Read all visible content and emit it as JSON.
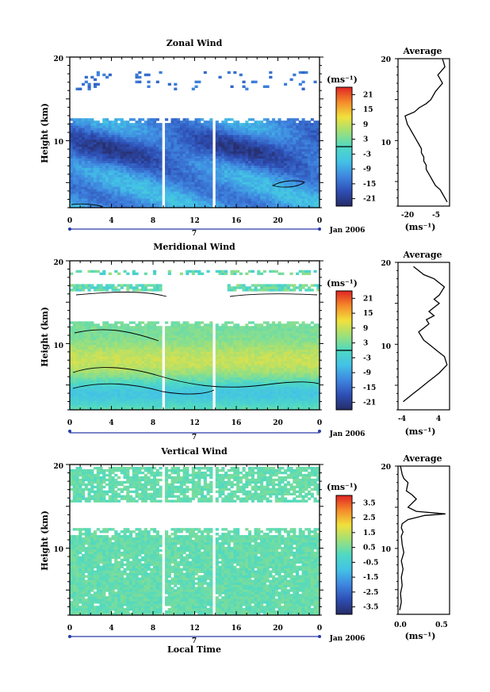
{
  "figure": {
    "xlabel": "Local Time",
    "date_label": "Jan 2006",
    "day_label": "7"
  },
  "chart_data": [
    {
      "type": "heatmap",
      "title": "Zonal Wind",
      "ylabel": "Height (km)",
      "unit_label": "(ms⁻¹)",
      "xlim": [
        0,
        24
      ],
      "ylim": [
        2,
        20
      ],
      "x_ticks": [
        "0",
        "4",
        "8",
        "12",
        "16",
        "20",
        "0"
      ],
      "y_ticks": [
        "10",
        "20"
      ],
      "colorbar_ticks": [
        "21",
        "15",
        "9",
        "3",
        "-3",
        "-9",
        "-15",
        "-21"
      ],
      "colorbar_range": [
        -24,
        24
      ],
      "field": "zonal"
    },
    {
      "type": "line",
      "title": "Average",
      "xlabel": "(ms⁻¹)",
      "x_ticks": [
        "-20",
        "-5"
      ],
      "xlim": [
        -24,
        -2
      ],
      "ylim": [
        2,
        20
      ],
      "y_ticks": [
        "10",
        "20"
      ],
      "x": [
        -3,
        -4,
        -5,
        -6,
        -8,
        -9,
        -10,
        -11,
        -12,
        -12,
        -13,
        -13,
        -14,
        -14,
        -15,
        -16,
        -17,
        -18,
        -19,
        -20,
        -21,
        -17,
        -15,
        -12,
        -10,
        -8,
        -5,
        -6,
        -7,
        -4,
        -5
      ],
      "y": [
        2.5,
        3.0,
        3.5,
        4.0,
        4.5,
        5.0,
        5.5,
        6.0,
        6.5,
        7.0,
        7.5,
        8.0,
        8.5,
        9.0,
        9.5,
        10.0,
        10.5,
        11.0,
        11.5,
        12.0,
        13.0,
        13.5,
        14.0,
        14.5,
        15.0,
        16.0,
        17.0,
        17.5,
        18.0,
        19.0,
        20.0
      ]
    },
    {
      "type": "heatmap",
      "title": "Meridional Wind",
      "ylabel": "Height (km)",
      "unit_label": "(ms⁻¹)",
      "xlim": [
        0,
        24
      ],
      "ylim": [
        2,
        20
      ],
      "x_ticks": [
        "0",
        "4",
        "8",
        "12",
        "16",
        "20",
        "0"
      ],
      "y_ticks": [
        "10",
        "20"
      ],
      "colorbar_ticks": [
        "21",
        "15",
        "9",
        "3",
        "-3",
        "-9",
        "-15",
        "-21"
      ],
      "colorbar_range": [
        -24,
        24
      ],
      "field": "meridional"
    },
    {
      "type": "line",
      "title": "Average",
      "xlabel": "(ms⁻¹)",
      "x_ticks": [
        "-4",
        "4"
      ],
      "xlim": [
        -5,
        5
      ],
      "ylim": [
        2,
        20
      ],
      "y_ticks": [
        "10",
        "20"
      ],
      "x": [
        -4,
        -3,
        -2,
        -1,
        0,
        1,
        2,
        3,
        4.5,
        4,
        3,
        2,
        1,
        0,
        -0.5,
        -1,
        0,
        1,
        0.5,
        2,
        1,
        2,
        3,
        2,
        3,
        4,
        2,
        0,
        -2
      ],
      "y": [
        3.0,
        3.5,
        4.0,
        4.5,
        5.0,
        5.5,
        6.0,
        6.5,
        7.5,
        8.5,
        9.0,
        9.5,
        10.0,
        10.5,
        11.0,
        11.5,
        12.0,
        12.5,
        13.0,
        13.5,
        14.0,
        14.5,
        15.0,
        15.5,
        16.0,
        17.0,
        18.0,
        18.5,
        19.5
      ]
    },
    {
      "type": "heatmap",
      "title": "Vertical Wind",
      "ylabel": "Height (km)",
      "unit_label": "(ms⁻¹)",
      "xlim": [
        0,
        24
      ],
      "ylim": [
        2,
        20
      ],
      "x_ticks": [
        "0",
        "4",
        "8",
        "12",
        "16",
        "20",
        "0"
      ],
      "y_ticks": [
        "10",
        "20"
      ],
      "colorbar_ticks": [
        "3.5",
        "2.5",
        "1.5",
        "0.5",
        "-0.5",
        "-1.5",
        "-2.5",
        "-3.5"
      ],
      "colorbar_range": [
        -4,
        4
      ],
      "field": "vertical"
    },
    {
      "type": "line",
      "title": "Average",
      "xlabel": "(ms⁻¹)",
      "x_ticks": [
        "0.0",
        "0.5"
      ],
      "xlim": [
        -0.02,
        0.6
      ],
      "ylim": [
        2,
        20
      ],
      "y_ticks": [
        "10",
        "20"
      ],
      "x": [
        0.0,
        0.02,
        0.01,
        0.03,
        0.02,
        0.04,
        0.02,
        0.05,
        0.03,
        0.02,
        0.04,
        0.02,
        0.03,
        0.1,
        0.3,
        0.55,
        0.2,
        0.1,
        0.2,
        0.15,
        0.08,
        0.1,
        0.05,
        0.03,
        0.02,
        0.01
      ],
      "y": [
        2.5,
        3.5,
        4.5,
        5.5,
        6.5,
        7.5,
        8.5,
        9.5,
        10.5,
        11.5,
        12.0,
        12.5,
        13.0,
        13.5,
        14.0,
        14.2,
        14.5,
        15.0,
        16.0,
        16.5,
        17.0,
        18.0,
        18.5,
        19.0,
        19.5,
        20.0
      ]
    }
  ]
}
